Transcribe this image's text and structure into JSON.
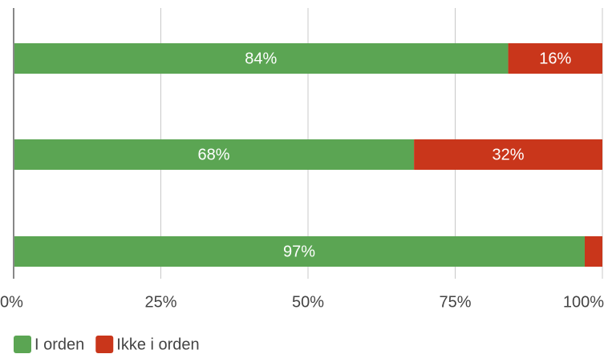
{
  "chart_data": {
    "type": "bar",
    "orientation": "horizontal",
    "stacked": true,
    "categories": [
      "",
      "",
      ""
    ],
    "series": [
      {
        "name": "I orden",
        "values": [
          84,
          68,
          97
        ],
        "color": "#5ba553"
      },
      {
        "name": "Ikke i orden",
        "values": [
          16,
          32,
          3
        ],
        "color": "#c9361b"
      }
    ],
    "data_labels": [
      [
        "84%",
        "68%",
        "97%"
      ],
      [
        "16%",
        "32%",
        ""
      ]
    ],
    "x_ticks": [
      "0%",
      "25%",
      "50%",
      "75%",
      "100%"
    ],
    "xlim": [
      0,
      100
    ],
    "grid": true,
    "legend_position": "bottom-left",
    "title": "",
    "xlabel": "",
    "ylabel": ""
  }
}
